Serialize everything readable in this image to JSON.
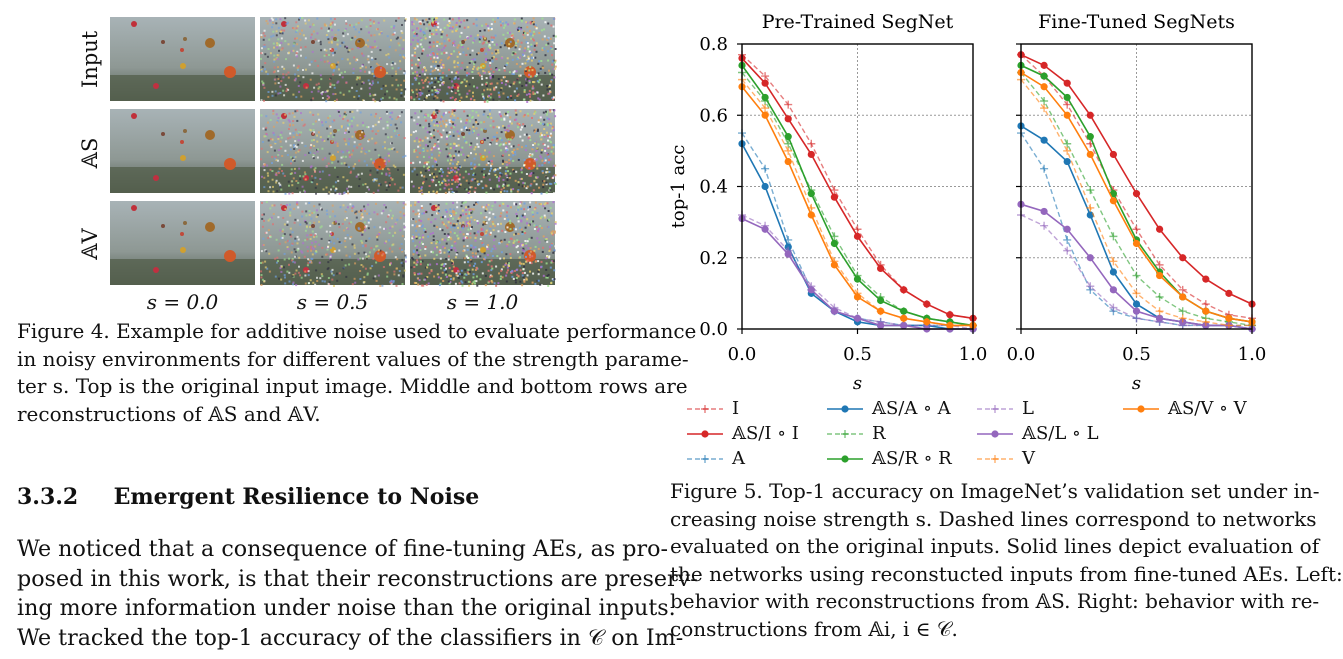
{
  "figure4": {
    "row_labels": [
      "Input",
      "𝔸S",
      "𝔸V"
    ],
    "col_labels": [
      "s = 0.0",
      "s = 0.5",
      "s = 1.0"
    ],
    "caption": [
      "Figure 4. Example for additive noise used to evaluate performance",
      "in noisy environments for different values of the strength parame-",
      "ter s. Top is the original input image. Middle and bottom rows are",
      "reconstructions of 𝔸S and 𝔸V."
    ]
  },
  "section": {
    "number": "3.3.2",
    "title": "Emergent Resilience to Noise",
    "body": [
      "We noticed that a consequence of fine-tuning AEs, as pro-",
      "posed in this work, is that their reconstructions are preserv-",
      "ing more information under noise than the original inputs.",
      "We tracked the top-1 accuracy of the classifiers in 𝒞 on Im-"
    ]
  },
  "figure5": {
    "caption": [
      "Figure 5. Top-1 accuracy on ImageNet’s validation set under in-",
      "creasing noise strength s.  Dashed lines correspond to networks",
      "evaluated on the original inputs.  Solid lines depict evaluation of",
      "the networks using reconstucted inputs from fine-tuned AEs. Left:",
      "behavior with reconstructions from 𝔸S.  Right: behavior with re-",
      "constructions from 𝔸i, i ∈ 𝒞."
    ]
  },
  "colors": {
    "I": "#d62728",
    "A": "#1f77b4",
    "R": "#2ca02c",
    "L": "#9467bd",
    "V": "#ff7f0e"
  },
  "chart_data": [
    {
      "type": "line",
      "title": "Pre-Trained SegNet",
      "xlabel": "s",
      "ylabel": "top-1 acc",
      "xlim": [
        0,
        1
      ],
      "ylim": [
        0,
        0.8
      ],
      "xticks": [
        "0.0",
        "0.5",
        "1.0"
      ],
      "yticks": [
        "0.0",
        "0.2",
        "0.4",
        "0.6",
        "0.8"
      ],
      "grid": true,
      "x": [
        0,
        0.1,
        0.2,
        0.3,
        0.4,
        0.5,
        0.6,
        0.7,
        0.8,
        0.9,
        1.0
      ],
      "series": [
        {
          "name": "I",
          "color": "I",
          "dashed": true,
          "marker": "plus",
          "values": [
            0.77,
            0.71,
            0.63,
            0.52,
            0.39,
            0.28,
            0.18,
            0.11,
            0.07,
            0.04,
            0.03
          ]
        },
        {
          "name": "𝔸S/I ∘ I",
          "color": "I",
          "dashed": false,
          "marker": "dot",
          "values": [
            0.76,
            0.69,
            0.59,
            0.49,
            0.37,
            0.26,
            0.17,
            0.11,
            0.07,
            0.04,
            0.03
          ]
        },
        {
          "name": "A",
          "color": "A",
          "dashed": true,
          "marker": "plus",
          "values": [
            0.55,
            0.45,
            0.25,
            0.11,
            0.05,
            0.03,
            0.02,
            0.01,
            0.01,
            0.01,
            0.01
          ]
        },
        {
          "name": "𝔸S/A ∘ A",
          "color": "A",
          "dashed": false,
          "marker": "dot",
          "values": [
            0.52,
            0.4,
            0.23,
            0.1,
            0.05,
            0.02,
            0.01,
            0.01,
            0.01,
            0.0,
            0.0
          ]
        },
        {
          "name": "R",
          "color": "R",
          "dashed": true,
          "marker": "plus",
          "values": [
            0.72,
            0.64,
            0.52,
            0.39,
            0.26,
            0.15,
            0.09,
            0.05,
            0.03,
            0.02,
            0.01
          ]
        },
        {
          "name": "𝔸S/R ∘ R",
          "color": "R",
          "dashed": false,
          "marker": "dot",
          "values": [
            0.74,
            0.65,
            0.54,
            0.38,
            0.24,
            0.14,
            0.08,
            0.05,
            0.03,
            0.02,
            0.01
          ]
        },
        {
          "name": "L",
          "color": "L",
          "dashed": true,
          "marker": "plus",
          "values": [
            0.32,
            0.29,
            0.22,
            0.12,
            0.06,
            0.03,
            0.02,
            0.01,
            0.01,
            0.01,
            0.0
          ]
        },
        {
          "name": "𝔸S/L ∘ L",
          "color": "L",
          "dashed": false,
          "marker": "dot",
          "values": [
            0.31,
            0.28,
            0.21,
            0.11,
            0.05,
            0.03,
            0.01,
            0.01,
            0.0,
            0.0,
            0.0
          ]
        },
        {
          "name": "V",
          "color": "V",
          "dashed": true,
          "marker": "plus",
          "values": [
            0.7,
            0.62,
            0.5,
            0.34,
            0.19,
            0.1,
            0.05,
            0.03,
            0.02,
            0.01,
            0.01
          ]
        },
        {
          "name": "𝔸S/V ∘ V",
          "color": "V",
          "dashed": false,
          "marker": "dot",
          "values": [
            0.68,
            0.6,
            0.47,
            0.32,
            0.18,
            0.09,
            0.05,
            0.03,
            0.02,
            0.01,
            0.01
          ]
        }
      ]
    },
    {
      "type": "line",
      "title": "Fine-Tuned SegNets",
      "xlabel": "s",
      "ylabel": "",
      "xlim": [
        0,
        1
      ],
      "ylim": [
        0,
        0.8
      ],
      "xticks": [
        "0.0",
        "0.5",
        "1.0"
      ],
      "grid": true,
      "x": [
        0,
        0.1,
        0.2,
        0.3,
        0.4,
        0.5,
        0.6,
        0.7,
        0.8,
        0.9,
        1.0
      ],
      "series": [
        {
          "name": "I",
          "color": "I",
          "dashed": true,
          "marker": "plus",
          "values": [
            0.77,
            0.71,
            0.63,
            0.52,
            0.39,
            0.28,
            0.18,
            0.11,
            0.07,
            0.04,
            0.03
          ]
        },
        {
          "name": "𝔸S/I ∘ I",
          "color": "I",
          "dashed": false,
          "marker": "dot",
          "values": [
            0.77,
            0.74,
            0.69,
            0.6,
            0.49,
            0.38,
            0.28,
            0.2,
            0.14,
            0.1,
            0.07
          ]
        },
        {
          "name": "A",
          "color": "A",
          "dashed": true,
          "marker": "plus",
          "values": [
            0.55,
            0.45,
            0.25,
            0.11,
            0.05,
            0.03,
            0.02,
            0.01,
            0.01,
            0.01,
            0.01
          ]
        },
        {
          "name": "𝔸S/A ∘ A",
          "color": "A",
          "dashed": false,
          "marker": "dot",
          "values": [
            0.57,
            0.53,
            0.47,
            0.32,
            0.16,
            0.07,
            0.03,
            0.02,
            0.01,
            0.01,
            0.0
          ]
        },
        {
          "name": "R",
          "color": "R",
          "dashed": true,
          "marker": "plus",
          "values": [
            0.72,
            0.64,
            0.52,
            0.39,
            0.26,
            0.15,
            0.09,
            0.05,
            0.03,
            0.02,
            0.01
          ]
        },
        {
          "name": "𝔸S/R ∘ R",
          "color": "R",
          "dashed": false,
          "marker": "dot",
          "values": [
            0.74,
            0.71,
            0.65,
            0.54,
            0.38,
            0.25,
            0.16,
            0.09,
            0.05,
            0.03,
            0.02
          ]
        },
        {
          "name": "L",
          "color": "L",
          "dashed": true,
          "marker": "plus",
          "values": [
            0.32,
            0.29,
            0.22,
            0.12,
            0.06,
            0.03,
            0.02,
            0.01,
            0.01,
            0.01,
            0.0
          ]
        },
        {
          "name": "𝔸S/L ∘ L",
          "color": "L",
          "dashed": false,
          "marker": "dot",
          "values": [
            0.35,
            0.33,
            0.28,
            0.2,
            0.11,
            0.05,
            0.03,
            0.02,
            0.01,
            0.01,
            0.0
          ]
        },
        {
          "name": "V",
          "color": "V",
          "dashed": true,
          "marker": "plus",
          "values": [
            0.7,
            0.62,
            0.5,
            0.34,
            0.19,
            0.1,
            0.05,
            0.03,
            0.02,
            0.01,
            0.01
          ]
        },
        {
          "name": "𝔸S/V ∘ V",
          "color": "V",
          "dashed": false,
          "marker": "dot",
          "values": [
            0.72,
            0.68,
            0.6,
            0.49,
            0.36,
            0.24,
            0.15,
            0.09,
            0.05,
            0.03,
            0.02
          ]
        }
      ]
    }
  ]
}
